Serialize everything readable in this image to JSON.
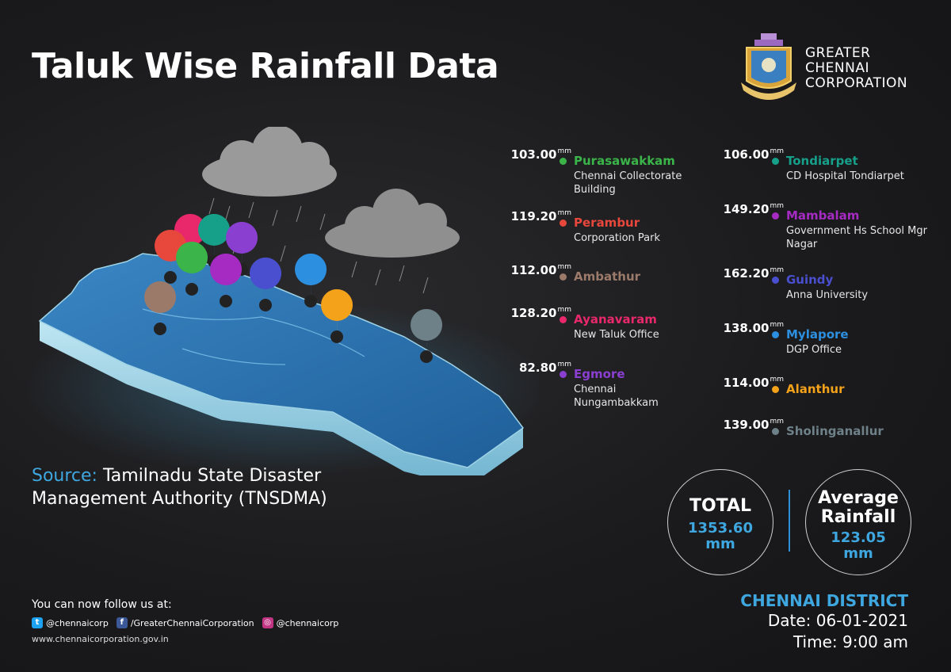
{
  "title": "Taluk Wise Rainfall Data",
  "organization": {
    "lines": [
      "GREATER",
      "CHENNAI",
      "CORPORATION"
    ]
  },
  "unit": "mm",
  "entries": [
    {
      "value": "103.00",
      "name": "Purasawakkam",
      "location": "Chennai Collectorate Building",
      "color": "#3bb54a"
    },
    {
      "value": "119.20",
      "name": "Perambur",
      "location": "Corporation Park",
      "color": "#e8473c"
    },
    {
      "value": "112.00",
      "name": "Ambathur",
      "location": "",
      "color": "#9b7a6a"
    },
    {
      "value": "128.20",
      "name": "Ayanavaram",
      "location": "New Taluk Office",
      "color": "#e8286b"
    },
    {
      "value": "82.80",
      "name": "Egmore",
      "location": "Chennai Nungambakkam",
      "color": "#8a3fd1"
    },
    {
      "value": "106.00",
      "name": "Tondiarpet",
      "location": "CD Hospital Tondiarpet",
      "color": "#16a08a"
    },
    {
      "value": "149.20",
      "name": "Mambalam",
      "location": "Government Hs School Mgr Nagar",
      "color": "#a52bc2"
    },
    {
      "value": "162.20",
      "name": "Guindy",
      "location": "Anna University",
      "color": "#4a4fd0"
    },
    {
      "value": "138.00",
      "name": "Mylapore",
      "location": "DGP Office",
      "color": "#2d8fe0"
    },
    {
      "value": "114.00",
      "name": "Alanthur",
      "location": "",
      "color": "#f5a21b"
    },
    {
      "value": "139.00",
      "name": "Sholinganallur",
      "location": "",
      "color": "#6e8189"
    }
  ],
  "total": {
    "label": "TOTAL",
    "value": "1353.60",
    "unit": "mm"
  },
  "average": {
    "label_line1": "Average",
    "label_line2": "Rainfall",
    "value": "123.05",
    "unit": "mm"
  },
  "source": {
    "label": "Source:",
    "text": "Tamilnadu State Disaster Management Authority (TNSDMA)"
  },
  "follow": {
    "heading": "You can now follow us at:",
    "twitter": "@chennaicorp",
    "facebook": "/GreaterChennaiCorporation",
    "instagram": "@chennaicorp",
    "website": "www.chennaicorporation.gov.in"
  },
  "district": {
    "name": "CHENNAI DISTRICT",
    "date": "Date: 06-01-2021",
    "time": "Time: 9:00 am"
  },
  "colors": {
    "accent": "#3fa7e0",
    "background": "#1b1b1d",
    "map_top": "#2f77b5",
    "map_side": "#9fd3e6"
  },
  "icons": [
    "cloud-icon",
    "map-pin-icon",
    "twitter-icon",
    "facebook-icon",
    "instagram-icon",
    "emblem-icon"
  ]
}
